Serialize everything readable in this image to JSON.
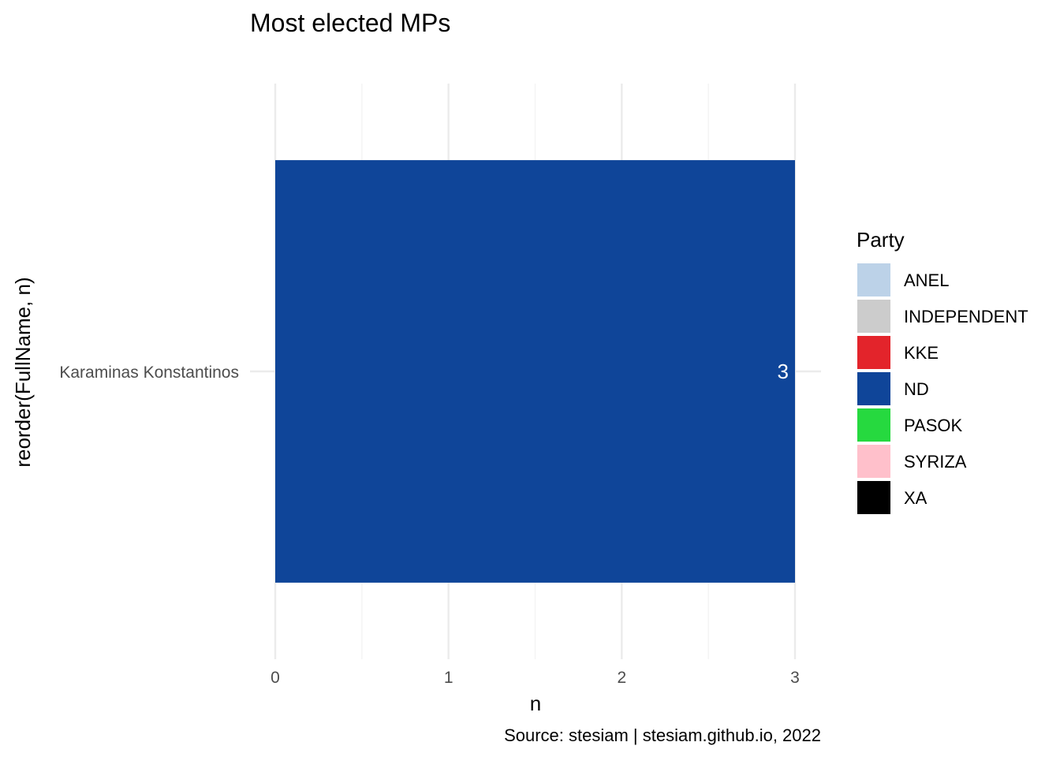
{
  "chart_data": {
    "type": "bar",
    "orientation": "horizontal",
    "title": "Most elected MPs",
    "xlabel": "n",
    "ylabel": "reorder(FullName, n)",
    "caption": "Source: stesiam | stesiam.github.io, 2022",
    "categories": [
      "Karaminas Konstantinos"
    ],
    "values": [
      3
    ],
    "bar_parties": [
      "ND"
    ],
    "data_labels": [
      "3"
    ],
    "xlim": [
      0,
      3
    ],
    "xticks": [
      0,
      1,
      2,
      3
    ],
    "grid": true,
    "legend": {
      "title": "Party",
      "placement": "right",
      "entries": [
        {
          "label": "ANEL",
          "color": "#bcd2e8"
        },
        {
          "label": "INDEPENDENT",
          "color": "#cccccc"
        },
        {
          "label": "KKE",
          "color": "#e3242b"
        },
        {
          "label": "ND",
          "color": "#0f4599"
        },
        {
          "label": "PASOK",
          "color": "#26d93f"
        },
        {
          "label": "SYRIZA",
          "color": "#ffc0cb"
        },
        {
          "label": "XA",
          "color": "#000000"
        }
      ]
    }
  }
}
